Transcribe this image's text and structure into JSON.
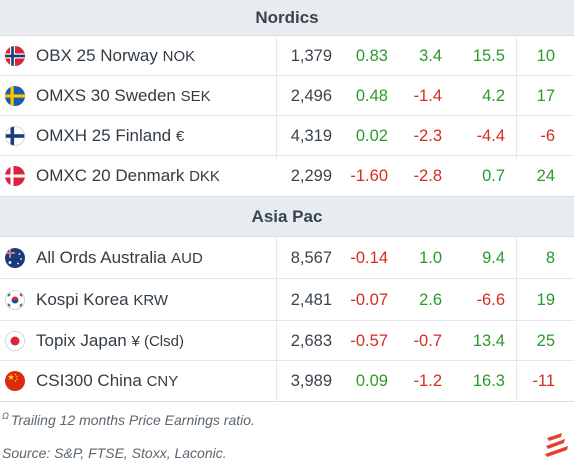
{
  "sections": [
    {
      "title": "Nordics",
      "rows": [
        {
          "flag": "norway-flag-icon",
          "name": "OBX 25 Norway",
          "ccy": "NOK",
          "value": "1,379",
          "d1": "0.83",
          "wk": "3.4",
          "ytd": "15.5",
          "pe": "10"
        },
        {
          "flag": "sweden-flag-icon",
          "name": "OMXS 30 Sweden",
          "ccy": "SEK",
          "value": "2,496",
          "d1": "0.48",
          "wk": "-1.4",
          "ytd": "4.2",
          "pe": "17"
        },
        {
          "flag": "finland-flag-icon",
          "name": "OMXH 25 Finland",
          "ccy": " €",
          "value": "4,319",
          "d1": "0.02",
          "wk": "-2.3",
          "ytd": "-4.4",
          "pe": "-6"
        },
        {
          "flag": "denmark-flag-icon",
          "name": "OMXC 20 Denmark",
          "ccy": "DKK",
          "value": "2,299",
          "d1": "-1.60",
          "wk": "-2.8",
          "ytd": "0.7",
          "pe": "24"
        }
      ]
    },
    {
      "title": "Asia Pac",
      "rows": [
        {
          "flag": "australia-flag-icon",
          "name": "All Ords Australia",
          "ccy": "AUD",
          "value": "8,567",
          "d1": "-0.14",
          "wk": "1.0",
          "ytd": "9.4",
          "pe": "8"
        },
        {
          "flag": "south-korea-flag-icon",
          "name": "Kospi Korea",
          "ccy": "KRW",
          "value": "2,481",
          "d1": "-0.07",
          "wk": "2.6",
          "ytd": "-6.6",
          "pe": "19"
        },
        {
          "flag": "japan-flag-icon",
          "name": "Topix Japan",
          "ccy": "¥ (Clsd)",
          "value": "2,683",
          "d1": "-0.57",
          "wk": "-0.7",
          "ytd": "13.4",
          "pe": "25"
        },
        {
          "flag": "china-flag-icon",
          "name": "CSI300 China",
          "ccy": "CNY",
          "value": "3,989",
          "d1": "0.09",
          "wk": "-1.2",
          "ytd": "16.3",
          "pe": "-11"
        }
      ]
    }
  ],
  "footer": {
    "note_marker": "Ω",
    "note": "Trailing 12 months Price Earnings ratio.",
    "source": "Source: S&P, FTSE, Stoxx, Laconic."
  },
  "colors": {
    "positive": "#2a9a2a",
    "negative": "#d62b1f",
    "header_bg": "#e7ecf0",
    "logo": "#e2412e"
  },
  "logo_icon": "laconic-logo-icon"
}
